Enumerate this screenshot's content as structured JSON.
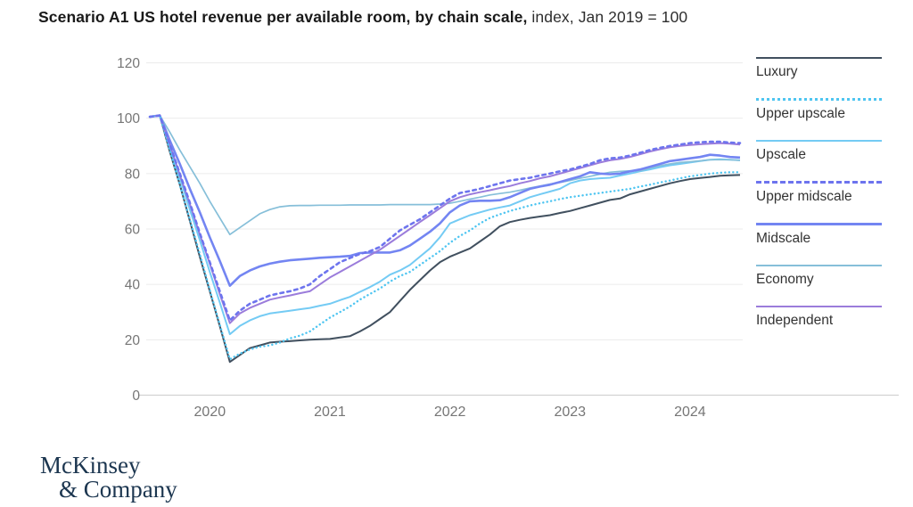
{
  "title": {
    "bold": "Scenario A1 US hotel revenue per available room, by chain scale,",
    "regular": " index, Jan 2019 = 100"
  },
  "branding": {
    "line1": "McKinsey",
    "line2": "& Company"
  },
  "legend": {
    "items": [
      {
        "label": "Luxury",
        "color": "#41505F",
        "style": "solid",
        "weight": 2
      },
      {
        "label": "Upper upscale",
        "color": "#4EC5F1",
        "style": "dotted",
        "weight": 3
      },
      {
        "label": "Upscale",
        "color": "#74CBF4",
        "style": "solid",
        "weight": 2
      },
      {
        "label": "Upper midscale",
        "color": "#6D74EE",
        "style": "dashed",
        "weight": 3
      },
      {
        "label": "Midscale",
        "color": "#7385F2",
        "style": "solid",
        "weight": 3
      },
      {
        "label": "Economy",
        "color": "#86BFD9",
        "style": "solid",
        "weight": 2
      },
      {
        "label": "Independent",
        "color": "#9B7CDB",
        "style": "solid",
        "weight": 2
      }
    ]
  },
  "chart_data": {
    "type": "line",
    "title": "Scenario A1 US hotel revenue per available room, by chain scale",
    "subtitle": "index, Jan 2019 = 100",
    "points_per_series": 60,
    "x_axis": {
      "tick_labels": [
        "2020",
        "2021",
        "2022",
        "2023",
        "2024"
      ],
      "tick_positions": [
        6,
        18,
        30,
        42,
        54
      ],
      "note": "monthly points, years labeled at mid-year"
    },
    "y_axis": {
      "ticks": [
        0,
        20,
        40,
        60,
        80,
        100,
        120
      ],
      "range": [
        0,
        120
      ]
    },
    "grid": "horizontal",
    "legend_position": "right",
    "series": [
      {
        "name": "Luxury",
        "color": "#41505F",
        "width": 2,
        "dash": "",
        "cap": "butt",
        "z": 1,
        "values": [
          100.5,
          101,
          88,
          76,
          63,
          50,
          37.5,
          25,
          12,
          14.5,
          17,
          18,
          19,
          19.3,
          19.5,
          19.8,
          20,
          20.2,
          20.3,
          20.8,
          21.3,
          23,
          25,
          27.5,
          30,
          34,
          38,
          41.5,
          45,
          48,
          50,
          51.5,
          53,
          55.5,
          58,
          61,
          62.5,
          63.3,
          64,
          64.5,
          65,
          65.8,
          66.5,
          67.5,
          68.5,
          69.5,
          70.5,
          71,
          72.5,
          73.5,
          74.5,
          75.5,
          76.5,
          77.3,
          78,
          78.4,
          78.8,
          79.2,
          79.4,
          79.5
        ]
      },
      {
        "name": "Upper upscale",
        "color": "#4EC5F1",
        "width": 2.4,
        "dash": "0.1 4.4",
        "cap": "round",
        "z": 6,
        "values": [
          100.5,
          101,
          88.5,
          76,
          63.5,
          51,
          38,
          25.5,
          13,
          15,
          16.5,
          17.5,
          18,
          19,
          20.5,
          21.5,
          23,
          25.5,
          28,
          30,
          32,
          34.5,
          36.5,
          38.5,
          41,
          43,
          44.5,
          47,
          49.5,
          52,
          55,
          57.5,
          59.5,
          62,
          64,
          65.3,
          66.5,
          67.5,
          68.5,
          69.3,
          70,
          70.8,
          71.5,
          72,
          72.5,
          73,
          73.5,
          74,
          74.5,
          75.3,
          76,
          76.8,
          77.5,
          78.3,
          79,
          79.5,
          80,
          80.3,
          80.5,
          80.5
        ]
      },
      {
        "name": "Upscale",
        "color": "#74CBF4",
        "width": 2,
        "dash": "",
        "cap": "butt",
        "z": 2,
        "values": [
          100.5,
          101,
          89.5,
          78.5,
          67,
          56,
          44.5,
          33.5,
          22,
          25,
          27,
          28.5,
          29.5,
          30,
          30.5,
          31,
          31.5,
          32.3,
          33,
          34.3,
          35.5,
          37.3,
          39,
          41,
          43.5,
          45,
          47,
          50,
          53,
          57,
          62,
          63.5,
          65,
          66,
          67,
          67.8,
          68.5,
          70,
          71.5,
          72.5,
          73.5,
          74.5,
          76.5,
          77.5,
          78,
          78.3,
          78.5,
          79.3,
          80,
          80.8,
          81.5,
          82.3,
          83,
          83.5,
          84,
          84.5,
          85,
          85.2,
          85,
          84.8
        ]
      },
      {
        "name": "Upper midscale",
        "color": "#6D74EE",
        "width": 2.6,
        "dash": "3.6 4.4",
        "cap": "round",
        "z": 7,
        "values": [
          100.5,
          101,
          90.5,
          80,
          69.5,
          58.5,
          48,
          37.5,
          27,
          30.5,
          33,
          34.5,
          36,
          36.8,
          37.5,
          38.5,
          40,
          43,
          45.5,
          48,
          49.5,
          51,
          52,
          53.5,
          56.5,
          59.5,
          61.5,
          63.5,
          66,
          68.5,
          71,
          73,
          73.7,
          74.5,
          75.5,
          76.5,
          77.5,
          78,
          78.5,
          79.3,
          80,
          80.8,
          81.5,
          82.5,
          83.5,
          84.8,
          85.5,
          85.8,
          86.5,
          87.5,
          88.5,
          89.3,
          90,
          90.5,
          91,
          91.3,
          91.5,
          91.5,
          91.2,
          91
        ]
      },
      {
        "name": "Midscale",
        "color": "#7385F2",
        "width": 2.6,
        "dash": "",
        "cap": "butt",
        "z": 4,
        "values": [
          100.5,
          101,
          92,
          83.5,
          74.5,
          66,
          57,
          48.5,
          39.5,
          43,
          45,
          46.5,
          47.5,
          48.2,
          48.7,
          49,
          49.3,
          49.6,
          49.8,
          50,
          50.3,
          51.3,
          51.5,
          51.5,
          51.5,
          52.3,
          54,
          56.5,
          59,
          62,
          66,
          68.5,
          70,
          70.2,
          70.2,
          70.4,
          71.5,
          73,
          74.5,
          75.3,
          76,
          77,
          78,
          79,
          80.5,
          80,
          79.8,
          80,
          80.8,
          81.5,
          82.5,
          83.5,
          84.5,
          85,
          85.5,
          86,
          86.8,
          86.5,
          86,
          85.8
        ]
      },
      {
        "name": "Economy",
        "color": "#86BFD9",
        "width": 1.7,
        "dash": "",
        "cap": "butt",
        "z": 3,
        "values": [
          100.5,
          101,
          95,
          88.5,
          82.5,
          76.5,
          70,
          64,
          58,
          60.5,
          63,
          65.5,
          67,
          68,
          68.4,
          68.5,
          68.5,
          68.6,
          68.6,
          68.6,
          68.7,
          68.7,
          68.7,
          68.7,
          68.8,
          68.8,
          68.8,
          68.8,
          68.8,
          69,
          69.3,
          70,
          70.8,
          71.5,
          72.3,
          72.8,
          73.3,
          74,
          74.8,
          75.5,
          76.2,
          76.8,
          77.5,
          78.3,
          79,
          79.8,
          80.5,
          80.8,
          81,
          81,
          82,
          82.8,
          83.5,
          84,
          84.3,
          84.6,
          85,
          85,
          85,
          84.8
        ]
      },
      {
        "name": "Independent",
        "color": "#9B7CDB",
        "width": 2,
        "dash": "",
        "cap": "butt",
        "z": 5,
        "values": [
          100.5,
          101,
          90.5,
          79.5,
          69,
          58,
          47.5,
          36.5,
          26,
          29.5,
          31.5,
          33,
          34.5,
          35.3,
          36,
          36.8,
          37.5,
          40,
          42.5,
          44.5,
          46.5,
          48.5,
          50.5,
          52.5,
          55,
          57.5,
          60,
          62.5,
          65,
          67.5,
          70,
          71.5,
          72.5,
          73.3,
          74,
          74.8,
          75.5,
          76.5,
          77.3,
          78.3,
          79,
          80,
          81,
          82,
          83,
          84,
          84.8,
          85.3,
          86,
          87,
          88,
          88.8,
          89.5,
          90,
          90.3,
          90.6,
          90.8,
          91,
          90.8,
          90.5
        ]
      }
    ]
  }
}
